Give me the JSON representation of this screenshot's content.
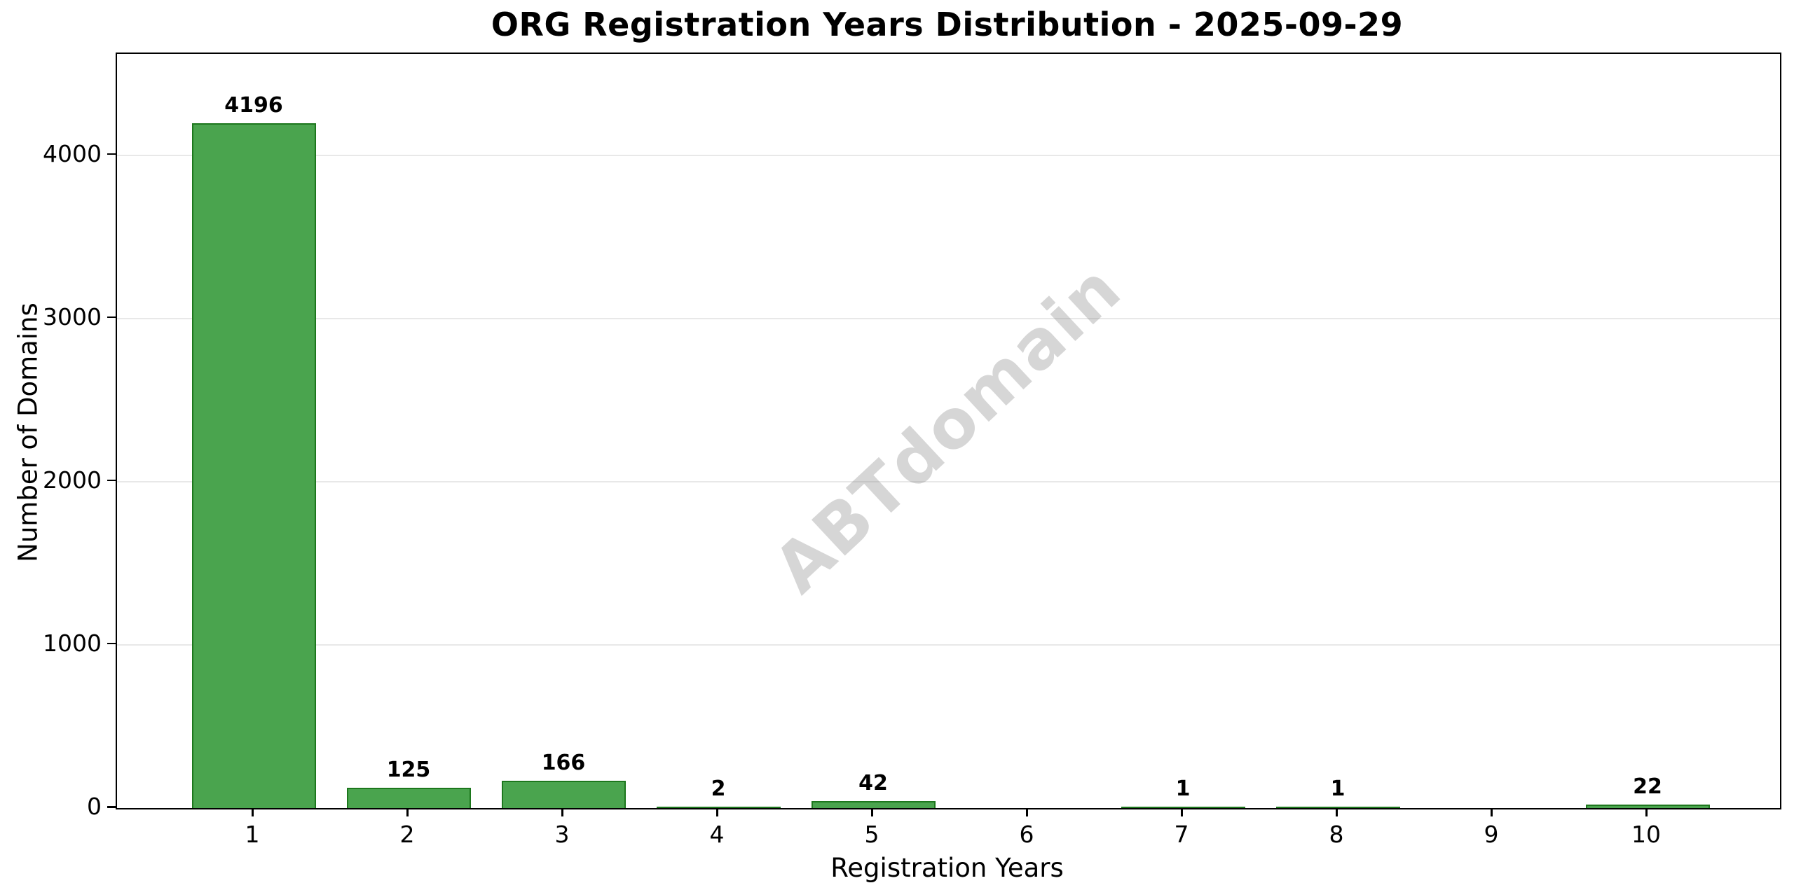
{
  "title": "ORG Registration Years Distribution - 2025-09-29",
  "chart_data": {
    "type": "bar",
    "title": "ORG Registration Years Distribution - 2025-09-29",
    "xlabel": "Registration Years",
    "ylabel": "Number of Domains",
    "categories": [
      "1",
      "2",
      "3",
      "4",
      "5",
      "6",
      "7",
      "8",
      "9",
      "10"
    ],
    "values": [
      4196,
      125,
      166,
      2,
      42,
      0,
      1,
      1,
      0,
      22
    ],
    "bar_labels": [
      "4196",
      "125",
      "166",
      "2",
      "42",
      "",
      "1",
      "1",
      "",
      "22"
    ],
    "yticks": [
      0,
      1000,
      2000,
      3000,
      4000
    ],
    "ytick_labels": [
      "0",
      "1000",
      "2000",
      "3000",
      "4000"
    ],
    "ylim": [
      0,
      4620
    ],
    "grid": "horizontal-light",
    "legend": "none",
    "bar_color": "#4aa44e",
    "bar_edge_color": "#1d771d",
    "gridline_color": "#e8e8e8",
    "watermark": {
      "text": "ABTdomain",
      "rotation_deg": -43,
      "color": "rgba(128,128,128,0.32)"
    }
  }
}
